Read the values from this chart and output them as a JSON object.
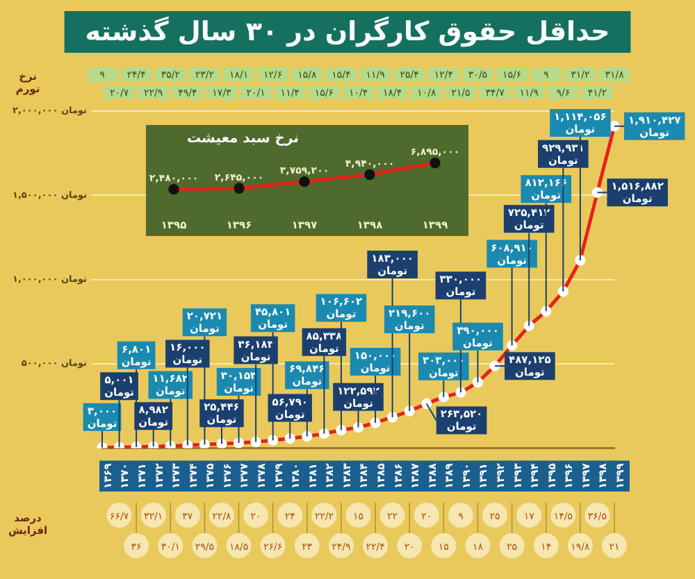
{
  "chart_data": [
    {
      "type": "line",
      "title": "حداقل حقوق کارگران در ۳۰ سال گذشته",
      "categories": [
        "۱۳۶۹",
        "۱۳۷۰",
        "۱۳۷۱",
        "۱۳۷۲",
        "۱۳۷۳",
        "۱۳۷۴",
        "۱۳۷۵",
        "۱۳۷۶",
        "۱۳۷۷",
        "۱۳۷۸",
        "۱۳۷۹",
        "۱۳۸۰",
        "۱۳۸۱",
        "۱۳۸۲",
        "۱۳۸۳",
        "۱۳۸۴",
        "۱۳۸۵",
        "۱۳۸۶",
        "۱۳۸۷",
        "۱۳۸۸",
        "۱۳۸۹",
        "۱۳۹۰",
        "۱۳۹۱",
        "۱۳۹۲",
        "۱۳۹۳",
        "۱۳۹۴",
        "۱۳۹۵",
        "۱۳۹۶",
        "۱۳۹۷",
        "۱۳۹۸",
        "۱۳۹۹"
      ],
      "series": [
        {
          "color": "#e3231b",
          "values": [
            3000,
            5001,
            6801,
            8982,
            11682,
            16000,
            20721,
            25446,
            30153,
            36183,
            45801,
            56790,
            69846,
            85338,
            106602,
            122592,
            150000,
            183000,
            219600,
            263520,
            303000,
            330000,
            390000,
            487125,
            608910,
            725412,
            812166,
            929931,
            1114056,
            1516882,
            1910427
          ],
          "value_labels": [
            "۳,۰۰۰ تومان",
            "۵,۰۰۱ تومان",
            "۶,۸۰۱ تومان",
            "۸,۹۸۲ تومان",
            "۱۱,۶۸۲ تومان",
            "۱۶,۰۰۰ تومان",
            "۲۰,۷۲۱ تومان",
            "۲۵,۴۴۶ تومان",
            "۳۰,۱۵۳ تومان",
            "۳۶,۱۸۳ تومان",
            "۴۵,۸۰۱ تومان",
            "۵۶,۷۹۰ تومان",
            "۶۹,۸۴۶ تومان",
            "۸۵,۳۳۸ تومان",
            "۱۰۶,۶۰۲ تومان",
            "۱۲۲,۵۹۲ تومان",
            "۱۵۰,۰۰۰ تومان",
            "۱۸۳,۰۰۰ تومان",
            "۲۱۹,۶۰۰ تومان",
            "۲۶۳,۵۲۰ تومان",
            "۳۰۳,۰۰۰ تومان",
            "۳۳۰,۰۰۰ تومان",
            "۳۹۰,۰۰۰ تومان",
            "۴۸۷,۱۲۵ تومان",
            "۶۰۸,۹۱۰ تومان",
            "۷۲۵,۴۱۲ تومان",
            "۸۱۲,۱۶۶ تومان",
            "۹۲۹,۹۳۱ تومان",
            "۱,۱۱۴,۰۵۶ تومان",
            "۱,۵۱۶,۸۸۲ تومان",
            "۱,۹۱۰,۴۲۷ تومان"
          ]
        }
      ],
      "ylim": [
        0,
        2000000
      ],
      "yticks": [
        {
          "value": 500000,
          "label": "۵۰۰,۰۰۰ تومان"
        },
        {
          "value": 1000000,
          "label": "۱,۰۰۰,۰۰۰ تومان"
        },
        {
          "value": 1500000,
          "label": "۱,۵۰۰,۰۰۰ تومان"
        },
        {
          "value": 2000000,
          "label": "۲,۰۰۰,۰۰۰ تومان"
        }
      ],
      "grid": "y",
      "legend": false,
      "marker": "circle",
      "line_style": "solid",
      "annotations": [
        "نرخ تورم",
        "۹",
        "۲۰/۷",
        "۲۴/۴",
        "۲۲/۹",
        "۳۵/۲",
        "۴۹/۴",
        "۲۳/۲",
        "۱۷/۳",
        "۱۸/۱",
        "۲۰/۱",
        "۱۲/۶",
        "۱۱/۴",
        "۱۵/۸",
        "۱۵/۶",
        "۱۵/۴",
        "۱۰/۴",
        "۱۱/۹",
        "۱۸/۴",
        "۲۵/۴",
        "۱۰/۸",
        "۱۲/۴",
        "۲۱/۵",
        "۳۰/۵",
        "۳۴/۷",
        "۱۵/۶",
        "۱۱/۹",
        "۹",
        "۹/۶",
        "۳۱/۲",
        "۴۱/۲",
        "۳۱/۸",
        "درصد افزایش",
        "۶۶/۷",
        "۳۶",
        "۳۲/۱",
        "۳۰/۱",
        "۳۷",
        "۲۹/۵",
        "۲۲/۸",
        "۱۸/۵",
        "۲۰",
        "۲۶/۶",
        "۲۴",
        "۲۳",
        "۲۲/۲",
        "۲۴/۹",
        "۱۵",
        "۲۲/۴",
        "۲۲",
        "۲۰",
        "۲۰",
        "۱۵",
        "۹",
        "۱۸",
        "۲۵",
        "۲۵",
        "۱۷",
        "۱۴",
        "۱۴/۵",
        "۱۹/۸",
        "۳۶/۵",
        "۲۱"
      ]
    },
    {
      "type": "line",
      "title": "نرخ سبد معیشت",
      "categories": [
        "۱۳۹۵",
        "۱۳۹۶",
        "۱۳۹۷",
        "۱۳۹۸",
        "۱۳۹۹"
      ],
      "series": [
        {
          "color": "#e3231b",
          "values": [
            2480000,
            2645000,
            3759200,
            4940000,
            6895000
          ],
          "value_labels": [
            "۲,۴۸۰,۰۰۰",
            "۲,۶۴۵,۰۰۰",
            "۳,۷۵۹,۲۰۰",
            "۴,۹۴۰,۰۰۰",
            "۶,۸۹۵,۰۰۰"
          ]
        }
      ],
      "legend": false,
      "marker": "circle",
      "line_style": "solid",
      "grid": false
    }
  ]
}
